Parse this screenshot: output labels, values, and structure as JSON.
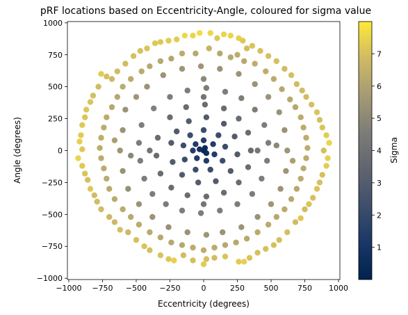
{
  "chart_data": {
    "type": "scatter",
    "title": "pRF locations based on Eccentricity-Angle, coloured for sigma value",
    "xlabel": "Eccentricity (degrees)",
    "ylabel": "Angle (degrees)",
    "xlim": [
      -1010,
      1010
    ],
    "ylim": [
      -1010,
      1010
    ],
    "xticks": [
      -1000,
      -750,
      -500,
      -250,
      0,
      250,
      500,
      750,
      1000
    ],
    "xtick_labels": [
      "−1000",
      "−750",
      "−500",
      "−250",
      "0",
      "250",
      "500",
      "750",
      "1000"
    ],
    "yticks": [
      -1000,
      -750,
      -500,
      -250,
      0,
      250,
      500,
      750,
      1000
    ],
    "ytick_labels": [
      "−1000",
      "−750",
      "−500",
      "−250",
      "0",
      "250",
      "500",
      "750",
      "1000"
    ],
    "grid": false,
    "colorbar": {
      "label": "Sigma",
      "range": [
        0,
        8
      ],
      "ticks": [
        1,
        2,
        3,
        4,
        5,
        6,
        7
      ],
      "tick_labels": [
        "1",
        "2",
        "3",
        "4",
        "5",
        "6",
        "7"
      ],
      "colormap": "cividis"
    },
    "points": [
      [
        250,
        750,
        6.4
      ],
      [
        290,
        860,
        7.2
      ],
      [
        260,
        880,
        7.4
      ],
      [
        200,
        900,
        7.5
      ],
      [
        150,
        910,
        7.5
      ],
      [
        100,
        880,
        7.2
      ],
      [
        50,
        920,
        7.6
      ],
      [
        -30,
        920,
        7.7
      ],
      [
        -80,
        900,
        7.5
      ],
      [
        -140,
        900,
        7.6
      ],
      [
        -200,
        870,
        7.3
      ],
      [
        -260,
        860,
        7.3
      ],
      [
        -320,
        850,
        7.2
      ],
      [
        -360,
        840,
        7.2
      ],
      [
        -420,
        800,
        7.1
      ],
      [
        -470,
        780,
        7.0
      ],
      [
        -520,
        740,
        7.0
      ],
      [
        -580,
        680,
        6.9
      ],
      [
        -640,
        620,
        6.9
      ],
      [
        -680,
        560,
        6.8
      ],
      [
        -720,
        580,
        7.0
      ],
      [
        -760,
        600,
        7.3
      ],
      [
        -780,
        500,
        6.9
      ],
      [
        -820,
        430,
        7.0
      ],
      [
        -840,
        380,
        7.1
      ],
      [
        -870,
        320,
        7.2
      ],
      [
        -880,
        260,
        7.1
      ],
      [
        -900,
        200,
        7.2
      ],
      [
        -910,
        120,
        7.3
      ],
      [
        -920,
        70,
        7.4
      ],
      [
        -900,
        10,
        7.2
      ],
      [
        -930,
        -60,
        7.5
      ],
      [
        -900,
        -120,
        7.2
      ],
      [
        -880,
        -180,
        7.1
      ],
      [
        -860,
        -230,
        7.0
      ],
      [
        -840,
        -300,
        7.2
      ],
      [
        -810,
        -350,
        6.9
      ],
      [
        -790,
        -400,
        6.9
      ],
      [
        -760,
        -460,
        6.9
      ],
      [
        -700,
        -520,
        6.8
      ],
      [
        -660,
        -560,
        6.8
      ],
      [
        -620,
        -620,
        7.0
      ],
      [
        -560,
        -640,
        6.8
      ],
      [
        -500,
        -700,
        7.0
      ],
      [
        -440,
        -750,
        7.1
      ],
      [
        -400,
        -780,
        7.0
      ],
      [
        -320,
        -820,
        7.1
      ],
      [
        -260,
        -850,
        7.2
      ],
      [
        -220,
        -860,
        7.4
      ],
      [
        -150,
        -820,
        6.9
      ],
      [
        -80,
        -860,
        7.0
      ],
      [
        0,
        -890,
        7.3
      ],
      [
        20,
        -850,
        7.0
      ],
      [
        80,
        -840,
        6.9
      ],
      [
        160,
        -830,
        7.1
      ],
      [
        260,
        -870,
        7.3
      ],
      [
        300,
        -870,
        7.4
      ],
      [
        340,
        -840,
        7.1
      ],
      [
        400,
        -800,
        7.0
      ],
      [
        460,
        -770,
        7.0
      ],
      [
        520,
        -740,
        7.0
      ],
      [
        560,
        -700,
        7.0
      ],
      [
        620,
        -640,
        7.0
      ],
      [
        680,
        -560,
        6.9
      ],
      [
        720,
        -530,
        7.2
      ],
      [
        750,
        -460,
        6.9
      ],
      [
        780,
        -420,
        7.1
      ],
      [
        810,
        -370,
        7.0
      ],
      [
        840,
        -300,
        7.1
      ],
      [
        860,
        -250,
        7.0
      ],
      [
        880,
        -190,
        7.0
      ],
      [
        910,
        -120,
        7.3
      ],
      [
        920,
        -60,
        7.4
      ],
      [
        890,
        0,
        7.0
      ],
      [
        930,
        60,
        7.5
      ],
      [
        910,
        120,
        7.3
      ],
      [
        880,
        180,
        7.1
      ],
      [
        860,
        240,
        7.0
      ],
      [
        840,
        300,
        7.1
      ],
      [
        800,
        360,
        7.0
      ],
      [
        760,
        420,
        6.9
      ],
      [
        730,
        470,
        6.9
      ],
      [
        690,
        520,
        6.9
      ],
      [
        650,
        590,
        7.0
      ],
      [
        600,
        640,
        6.9
      ],
      [
        540,
        700,
        7.0
      ],
      [
        480,
        740,
        7.0
      ],
      [
        420,
        780,
        7.0
      ],
      [
        360,
        820,
        7.1
      ],
      [
        320,
        800,
        6.9
      ],
      [
        640,
        400,
        6.2
      ],
      [
        580,
        480,
        6.2
      ],
      [
        520,
        560,
        6.3
      ],
      [
        460,
        620,
        6.4
      ],
      [
        380,
        680,
        6.4
      ],
      [
        300,
        700,
        6.2
      ],
      [
        200,
        730,
        6.2
      ],
      [
        120,
        760,
        6.2
      ],
      [
        40,
        800,
        6.6
      ],
      [
        -60,
        760,
        6.2
      ],
      [
        -160,
        760,
        6.3
      ],
      [
        -240,
        720,
        6.1
      ],
      [
        -320,
        700,
        6.2
      ],
      [
        -400,
        660,
        6.2
      ],
      [
        -460,
        620,
        6.3
      ],
      [
        -540,
        560,
        6.3
      ],
      [
        -600,
        500,
        6.3
      ],
      [
        -640,
        420,
        6.2
      ],
      [
        -680,
        340,
        6.2
      ],
      [
        -720,
        260,
        6.3
      ],
      [
        -740,
        180,
        6.3
      ],
      [
        -760,
        100,
        6.4
      ],
      [
        -770,
        20,
        6.4
      ],
      [
        -760,
        -60,
        6.3
      ],
      [
        -740,
        -140,
        6.3
      ],
      [
        -720,
        -220,
        6.3
      ],
      [
        -700,
        -300,
        6.3
      ],
      [
        -660,
        -380,
        6.3
      ],
      [
        -600,
        -460,
        6.3
      ],
      [
        -540,
        -520,
        6.2
      ],
      [
        -480,
        -580,
        6.3
      ],
      [
        -400,
        -640,
        6.3
      ],
      [
        -320,
        -680,
        6.2
      ],
      [
        -240,
        -720,
        6.2
      ],
      [
        -160,
        -740,
        6.2
      ],
      [
        -80,
        -760,
        6.3
      ],
      [
        0,
        -780,
        6.4
      ],
      [
        80,
        -760,
        6.3
      ],
      [
        160,
        -740,
        6.2
      ],
      [
        240,
        -720,
        6.2
      ],
      [
        320,
        -690,
        6.2
      ],
      [
        400,
        -640,
        6.3
      ],
      [
        480,
        -580,
        6.3
      ],
      [
        540,
        -520,
        6.2
      ],
      [
        600,
        -460,
        6.3
      ],
      [
        650,
        -380,
        6.2
      ],
      [
        690,
        -300,
        6.2
      ],
      [
        720,
        -220,
        6.3
      ],
      [
        740,
        -140,
        6.3
      ],
      [
        760,
        -60,
        6.3
      ],
      [
        770,
        20,
        6.4
      ],
      [
        760,
        100,
        6.4
      ],
      [
        740,
        180,
        6.3
      ],
      [
        720,
        260,
        6.3
      ],
      [
        680,
        340,
        6.2
      ],
      [
        -580,
        320,
        5.4
      ],
      [
        -600,
        160,
        5.4
      ],
      [
        -620,
        0,
        5.5
      ],
      [
        -600,
        -160,
        5.4
      ],
      [
        -560,
        -300,
        5.3
      ],
      [
        -480,
        -420,
        5.4
      ],
      [
        -380,
        -520,
        5.4
      ],
      [
        -260,
        -600,
        5.3
      ],
      [
        -120,
        -640,
        5.4
      ],
      [
        20,
        -660,
        5.5
      ],
      [
        140,
        -640,
        5.4
      ],
      [
        280,
        -600,
        5.4
      ],
      [
        400,
        -520,
        5.4
      ],
      [
        500,
        -420,
        5.5
      ],
      [
        570,
        -300,
        5.4
      ],
      [
        610,
        -160,
        5.5
      ],
      [
        620,
        0,
        5.5
      ],
      [
        600,
        160,
        5.4
      ],
      [
        560,
        300,
        5.4
      ],
      [
        480,
        420,
        5.4
      ],
      [
        380,
        520,
        5.4
      ],
      [
        260,
        600,
        5.4
      ],
      [
        120,
        640,
        5.4
      ],
      [
        -20,
        660,
        5.5
      ],
      [
        -160,
        640,
        5.5
      ],
      [
        -300,
        590,
        5.4
      ],
      [
        -420,
        500,
        5.4
      ],
      [
        -500,
        420,
        5.5
      ],
      [
        -660,
        80,
        5.9
      ],
      [
        660,
        -80,
        5.9
      ],
      [
        -460,
        200,
        4.6
      ],
      [
        -480,
        60,
        4.6
      ],
      [
        -470,
        -80,
        4.6
      ],
      [
        -440,
        -220,
        4.6
      ],
      [
        -380,
        -340,
        4.6
      ],
      [
        -280,
        -420,
        4.5
      ],
      [
        -160,
        -470,
        4.6
      ],
      [
        -20,
        -490,
        4.6
      ],
      [
        120,
        -470,
        4.6
      ],
      [
        250,
        -420,
        4.6
      ],
      [
        360,
        -340,
        4.6
      ],
      [
        430,
        -220,
        4.6
      ],
      [
        470,
        -80,
        4.6
      ],
      [
        480,
        60,
        4.6
      ],
      [
        450,
        200,
        4.6
      ],
      [
        380,
        320,
        4.6
      ],
      [
        280,
        410,
        4.6
      ],
      [
        160,
        460,
        4.6
      ],
      [
        20,
        490,
        4.6
      ],
      [
        -120,
        470,
        4.6
      ],
      [
        -250,
        420,
        4.6
      ],
      [
        -370,
        330,
        4.7
      ],
      [
        -540,
        -40,
        5.0
      ],
      [
        540,
        40,
        5.0
      ],
      [
        0,
        560,
        5.0
      ],
      [
        -340,
        100,
        3.8
      ],
      [
        -350,
        -40,
        3.8
      ],
      [
        -320,
        -180,
        3.8
      ],
      [
        -240,
        -290,
        3.8
      ],
      [
        -120,
        -350,
        3.8
      ],
      [
        20,
        -360,
        3.8
      ],
      [
        150,
        -330,
        3.8
      ],
      [
        260,
        -250,
        3.8
      ],
      [
        330,
        -130,
        3.8
      ],
      [
        350,
        0,
        3.8
      ],
      [
        330,
        140,
        3.8
      ],
      [
        260,
        250,
        3.8
      ],
      [
        150,
        330,
        3.8
      ],
      [
        10,
        360,
        3.8
      ],
      [
        -130,
        340,
        3.8
      ],
      [
        -250,
        260,
        3.8
      ],
      [
        -400,
        0,
        4.2
      ],
      [
        400,
        0,
        4.2
      ],
      [
        0,
        -420,
        4.2
      ],
      [
        0,
        420,
        4.2
      ],
      [
        -240,
        60,
        3.0
      ],
      [
        -230,
        -90,
        3.0
      ],
      [
        -160,
        -190,
        3.0
      ],
      [
        -40,
        -250,
        3.0
      ],
      [
        90,
        -240,
        3.0
      ],
      [
        200,
        -160,
        3.0
      ],
      [
        250,
        -30,
        3.0
      ],
      [
        230,
        110,
        3.0
      ],
      [
        150,
        210,
        3.0
      ],
      [
        20,
        260,
        3.0
      ],
      [
        -110,
        230,
        3.0
      ],
      [
        -200,
        150,
        3.0
      ],
      [
        -150,
        40,
        2.2
      ],
      [
        -140,
        -70,
        2.2
      ],
      [
        -60,
        -150,
        2.2
      ],
      [
        50,
        -150,
        2.2
      ],
      [
        140,
        -80,
        2.2
      ],
      [
        160,
        30,
        2.2
      ],
      [
        110,
        120,
        2.2
      ],
      [
        0,
        160,
        2.2
      ],
      [
        -100,
        120,
        2.2
      ],
      [
        -80,
        0,
        1.4
      ],
      [
        -50,
        -60,
        1.4
      ],
      [
        20,
        -80,
        1.4
      ],
      [
        80,
        -30,
        1.4
      ],
      [
        70,
        50,
        1.4
      ],
      [
        0,
        80,
        1.4
      ],
      [
        -60,
        50,
        1.4
      ],
      [
        -30,
        10,
        0.8
      ],
      [
        20,
        -20,
        0.7
      ],
      [
        10,
        20,
        0.6
      ],
      [
        0,
        0,
        0.4
      ]
    ]
  }
}
